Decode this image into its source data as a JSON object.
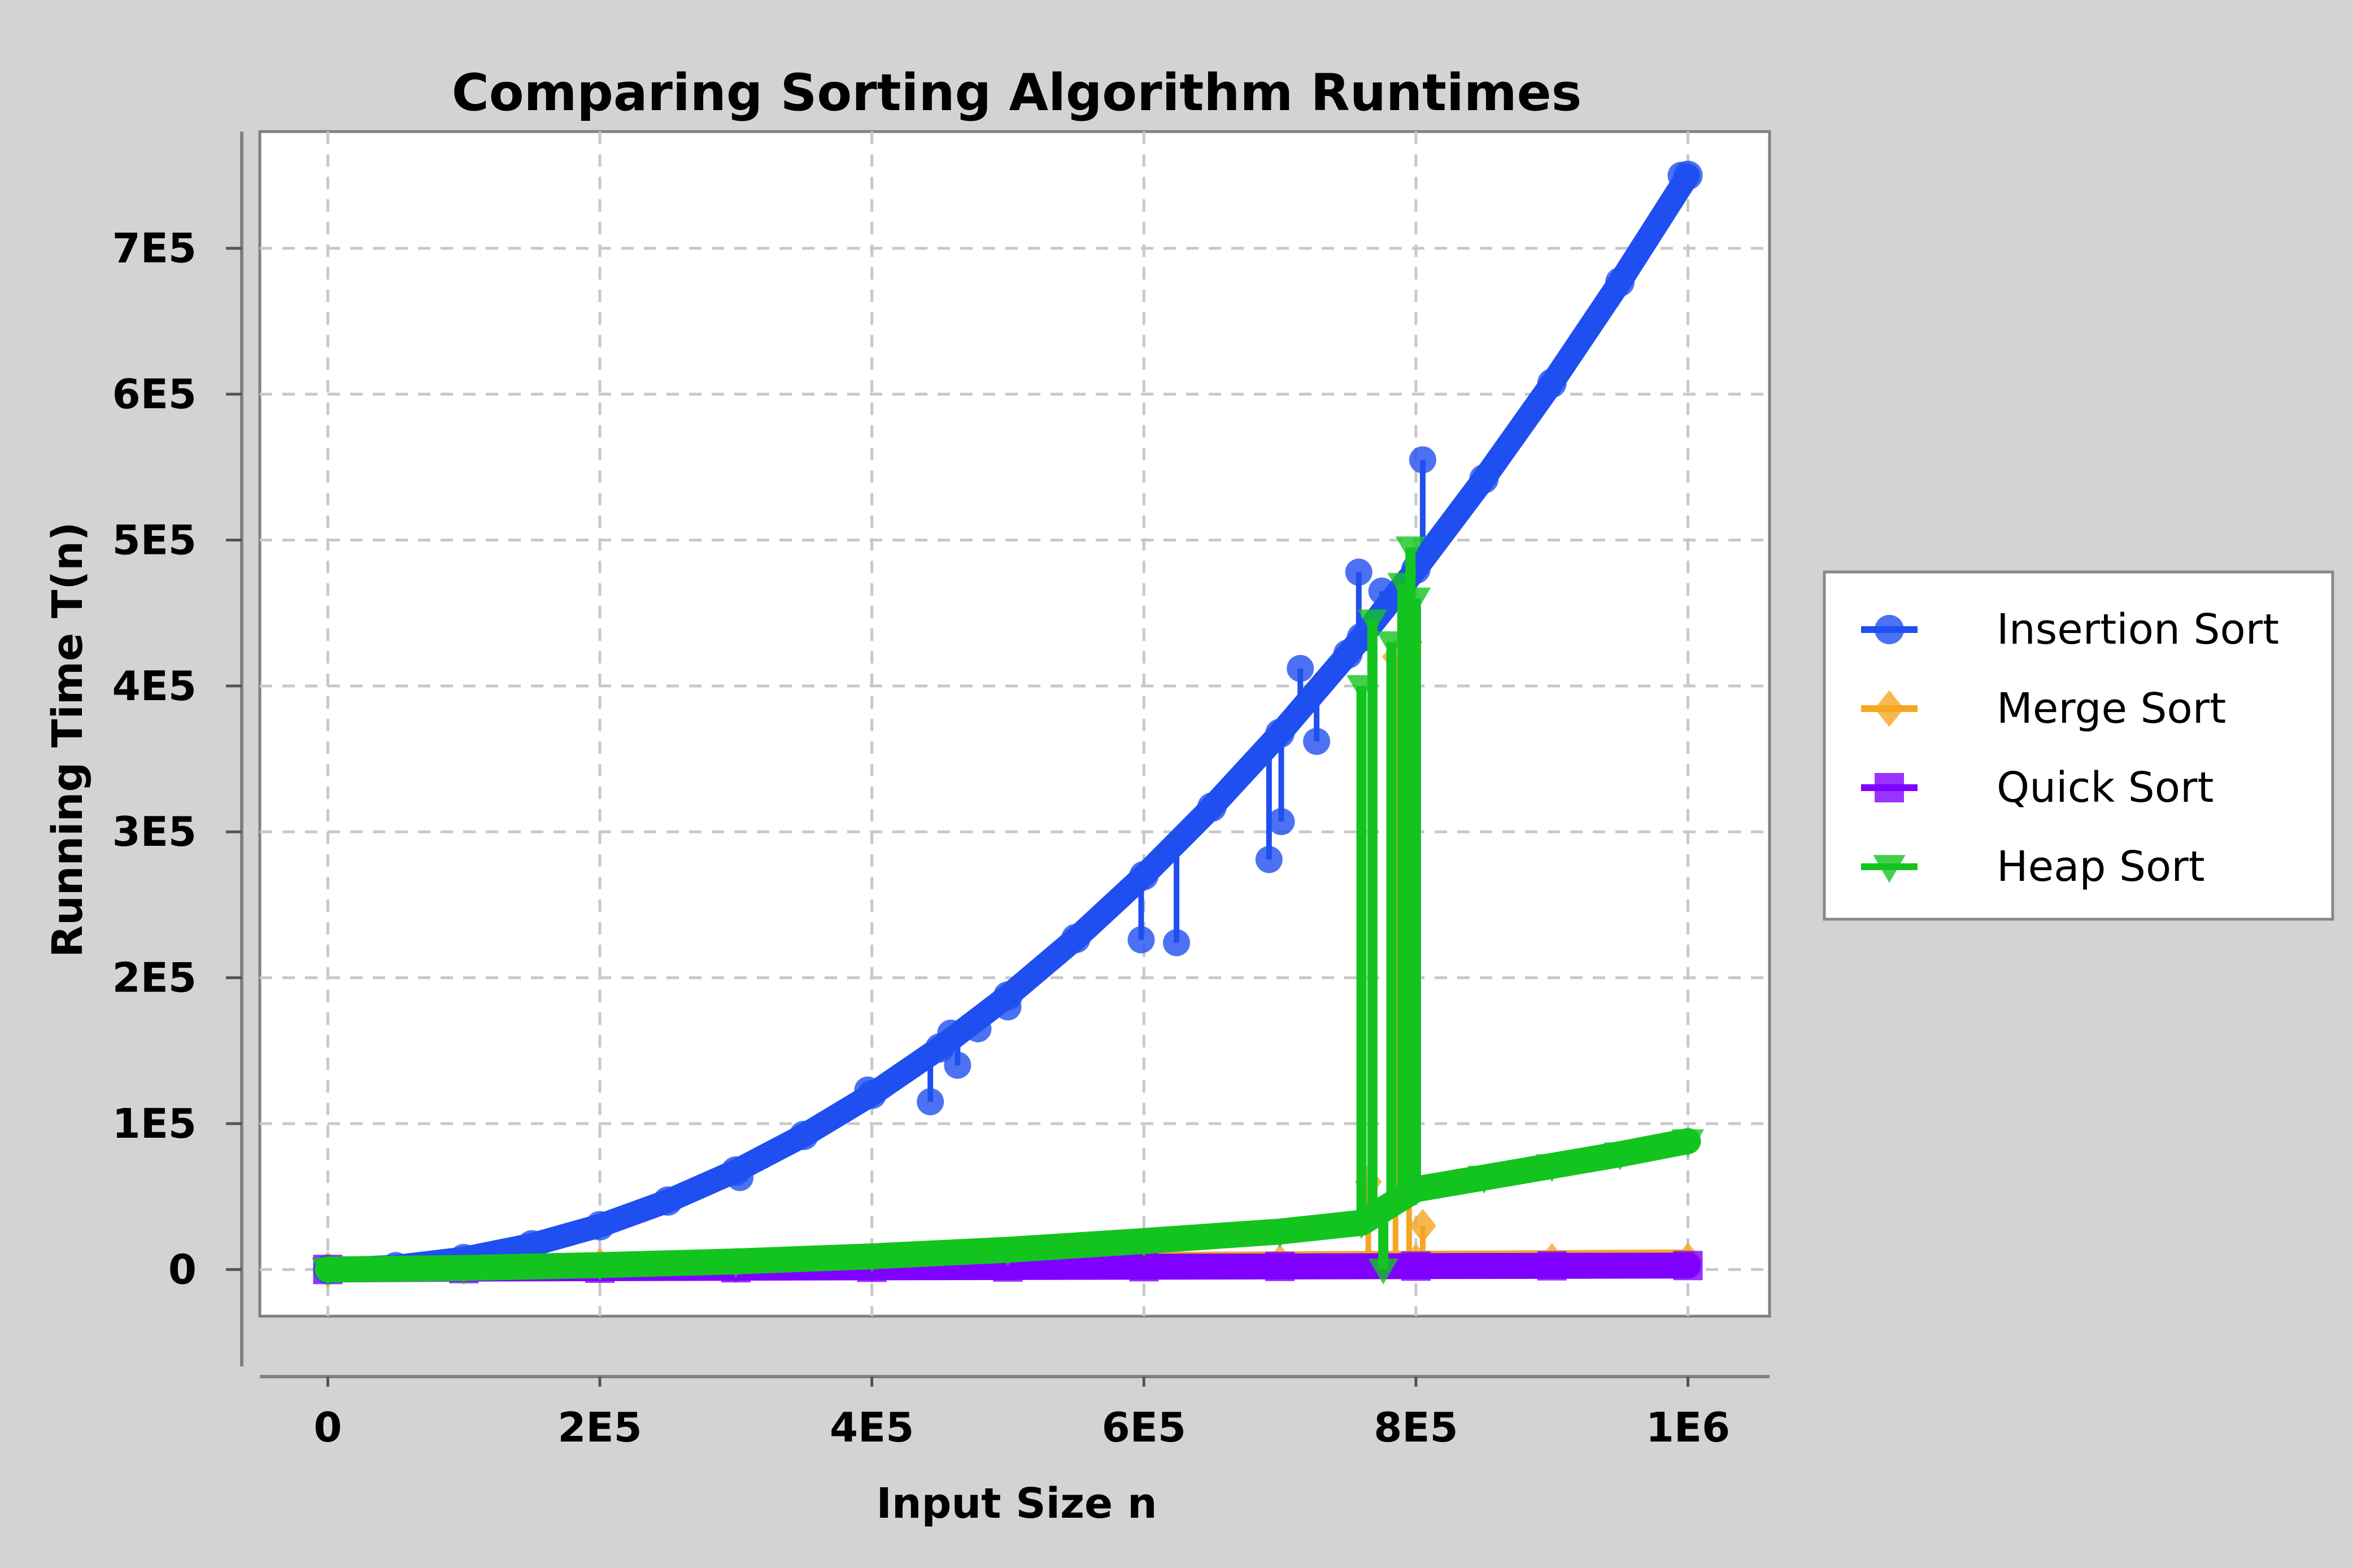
{
  "chart_data": {
    "type": "line",
    "title": "Comparing Sorting Algorithm Runtimes",
    "xlabel": "Input Size n",
    "ylabel": "Running Time T(n)",
    "xlim": [
      -50000,
      1060000
    ],
    "ylim": [
      -32000,
      780000
    ],
    "x_ticks": [
      {
        "value": 0,
        "label": "0"
      },
      {
        "value": 200000,
        "label": "2E5"
      },
      {
        "value": 400000,
        "label": "4E5"
      },
      {
        "value": 600000,
        "label": "6E5"
      },
      {
        "value": 800000,
        "label": "8E5"
      },
      {
        "value": 1000000,
        "label": "1E6"
      }
    ],
    "y_ticks": [
      {
        "value": 0,
        "label": "0"
      },
      {
        "value": 100000,
        "label": "1E5"
      },
      {
        "value": 200000,
        "label": "2E5"
      },
      {
        "value": 300000,
        "label": "3E5"
      },
      {
        "value": 400000,
        "label": "4E5"
      },
      {
        "value": 500000,
        "label": "5E5"
      },
      {
        "value": 600000,
        "label": "6E5"
      },
      {
        "value": 700000,
        "label": "7E5"
      }
    ],
    "grid": true,
    "legend_position": "right",
    "series": [
      {
        "name": "Insertion Sort",
        "color": "#1f4ff0",
        "marker": "circle",
        "x": [
          0,
          50000,
          100000,
          150000,
          200000,
          250000,
          300000,
          350000,
          400000,
          450000,
          500000,
          550000,
          600000,
          650000,
          700000,
          750000,
          760000,
          800000,
          850000,
          900000,
          950000,
          1000000
        ],
        "y": [
          0,
          1900,
          7500,
          16900,
          30000,
          46900,
          67500,
          91900,
          120000,
          151900,
          187500,
          226900,
          270000,
          316900,
          367500,
          421900,
          433200,
          480000,
          541900,
          607500,
          676900,
          750000
        ],
        "spikes": [
          {
            "x": 303000,
            "y": 63000
          },
          {
            "x": 397000,
            "y": 123000
          },
          {
            "x": 443000,
            "y": 115000
          },
          {
            "x": 458000,
            "y": 162000
          },
          {
            "x": 463000,
            "y": 140000
          },
          {
            "x": 478000,
            "y": 165000
          },
          {
            "x": 500000,
            "y": 180000
          },
          {
            "x": 598000,
            "y": 226000
          },
          {
            "x": 624000,
            "y": 224000
          },
          {
            "x": 692000,
            "y": 281000
          },
          {
            "x": 701000,
            "y": 307000
          },
          {
            "x": 715000,
            "y": 412000
          },
          {
            "x": 727000,
            "y": 362000
          },
          {
            "x": 758000,
            "y": 478000
          },
          {
            "x": 775000,
            "y": 465000
          },
          {
            "x": 805000,
            "y": 555000
          },
          {
            "x": 995000,
            "y": 750000
          }
        ]
      },
      {
        "name": "Merge Sort",
        "color": "#f5a623",
        "marker": "diamond",
        "x": [
          0,
          100000,
          200000,
          300000,
          400000,
          500000,
          600000,
          700000,
          800000,
          900000,
          1000000
        ],
        "y": [
          0,
          2000,
          2400,
          2900,
          3400,
          3800,
          4300,
          4700,
          5100,
          5500,
          6000
        ],
        "spikes": [
          {
            "x": 765000,
            "y": 60000
          },
          {
            "x": 785000,
            "y": 420000
          },
          {
            "x": 795000,
            "y": 430000
          },
          {
            "x": 805000,
            "y": 30000
          }
        ]
      },
      {
        "name": "Quick Sort",
        "color": "#7f00ff",
        "marker": "square",
        "x": [
          0,
          100000,
          200000,
          300000,
          400000,
          500000,
          600000,
          700000,
          800000,
          900000,
          1000000
        ],
        "y": [
          0,
          600,
          900,
          1200,
          1500,
          1700,
          1900,
          2100,
          2300,
          2500,
          2700
        ]
      },
      {
        "name": "Heap Sort",
        "color": "#13c41f",
        "marker": "triangle-down",
        "x": [
          0,
          100000,
          200000,
          300000,
          400000,
          500000,
          600000,
          700000,
          760000,
          800000,
          850000,
          900000,
          950000,
          1000000
        ],
        "y": [
          0,
          1000,
          3000,
          5500,
          9000,
          13500,
          19500,
          26000,
          32000,
          55000,
          63000,
          71000,
          79000,
          88000
        ],
        "spikes": [
          {
            "x": 760000,
            "y": 400000
          },
          {
            "x": 768000,
            "y": 445000
          },
          {
            "x": 776000,
            "y": 0
          },
          {
            "x": 782000,
            "y": 430000
          },
          {
            "x": 790000,
            "y": 470000
          },
          {
            "x": 796000,
            "y": 495000
          },
          {
            "x": 800000,
            "y": 460000
          }
        ]
      }
    ]
  }
}
